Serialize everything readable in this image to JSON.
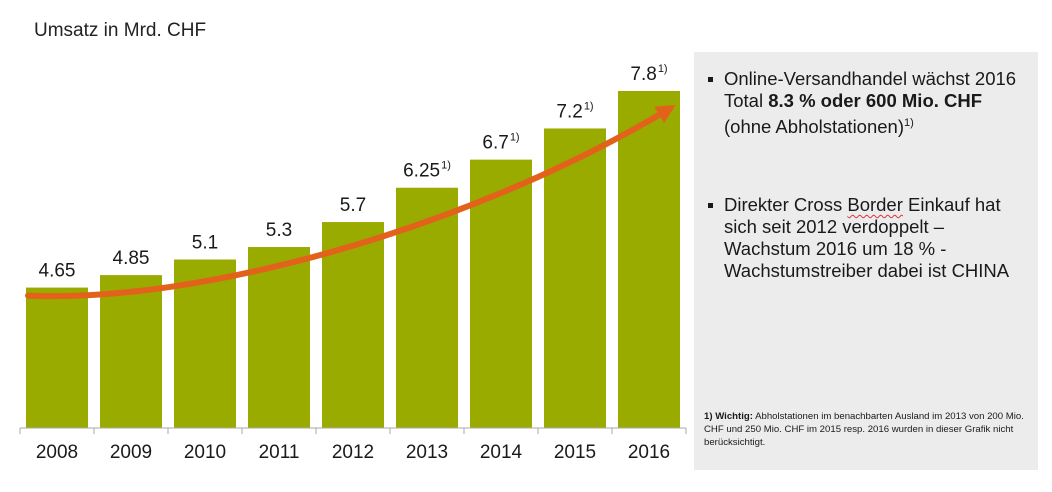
{
  "chart_data": {
    "type": "bar",
    "title": "Umsatz in Mrd. CHF",
    "categories": [
      "2008",
      "2009",
      "2010",
      "2011",
      "2012",
      "2013",
      "2014",
      "2015",
      "2016"
    ],
    "values": [
      4.65,
      4.85,
      5.1,
      5.3,
      5.7,
      6.25,
      6.7,
      7.2,
      7.8
    ],
    "data_labels": [
      "4.65",
      "4.85",
      "5.1",
      "5.3",
      "5.7",
      "6.25",
      "6.7",
      "7.2",
      "7.8"
    ],
    "footnote_marks": [
      false,
      false,
      false,
      false,
      false,
      true,
      true,
      true,
      true
    ],
    "footnote_symbol": "1)",
    "ylim": [
      2.4,
      7.8
    ],
    "grid": false,
    "bar_color": "#9aab00",
    "trend_arrow_color": "#e2621b"
  },
  "panel": {
    "bullet1": {
      "t1": "Online-Versandhandel wächst 2016 Total ",
      "bold": "8.3 % oder 600 Mio. CHF",
      "t2": " (ohne Abholstationen)",
      "sup": "1)"
    },
    "bullet2": {
      "t1": "Direkter Cross ",
      "squiggle": "Border",
      "t2": " Einkauf hat sich seit 2012 verdoppelt – Wachstum 2016 um 18 % - Wachstumstreiber dabei ist CHINA"
    },
    "footnote": {
      "bold": "1) Wichtig:",
      "text": " Abholstationen im benachbarten Ausland im 2013 von 200 Mio. CHF und 250 Mio. CHF im 2015 resp. 2016 wurden in dieser Grafik nicht berücksichtigt."
    }
  }
}
